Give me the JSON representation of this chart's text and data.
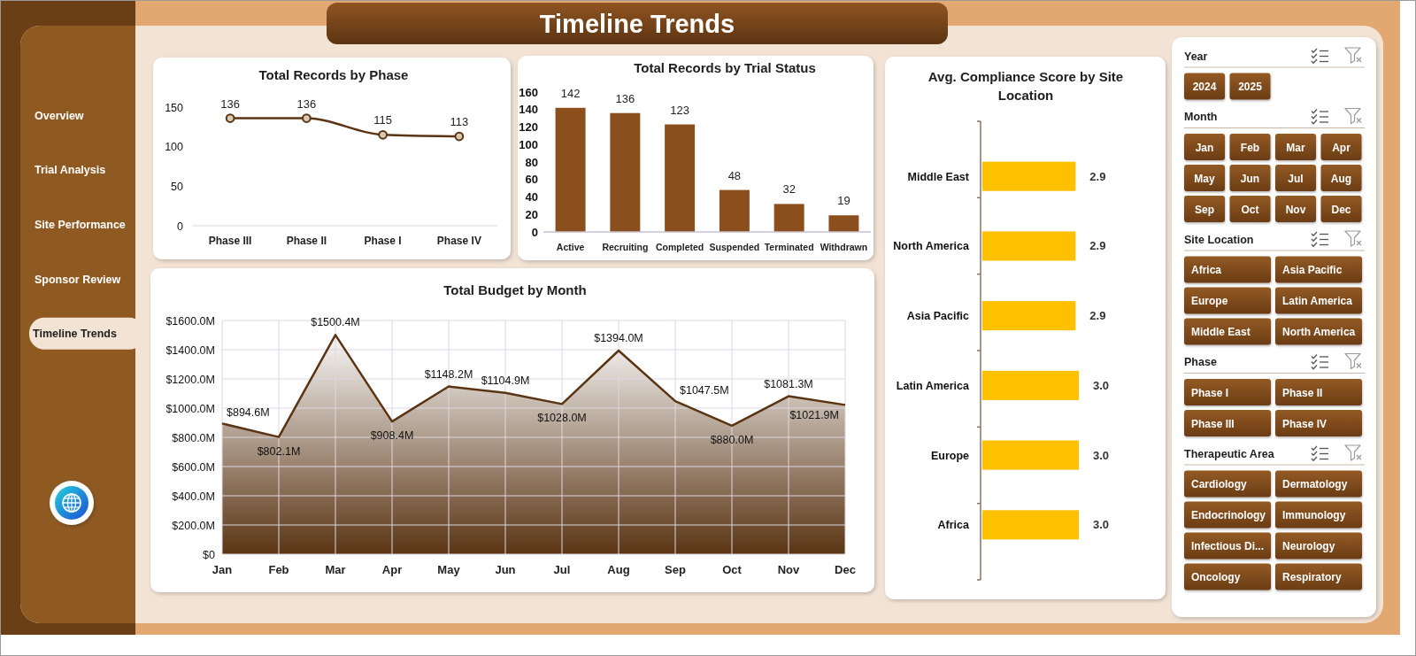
{
  "chart_data": [
    {
      "type": "other",
      "title": "Timeline Trends"
    },
    {
      "type": "other",
      "categories": [
        "Overview",
        "Trial Analysis",
        "Site Performance",
        "Sponsor Review",
        "Timeline Trends"
      ]
    },
    {
      "type": "line",
      "title": "Total Records by Phase",
      "categories": [
        "Phase III",
        "Phase II",
        "Phase I",
        "Phase IV"
      ],
      "values": [
        136,
        136,
        115,
        113
      ],
      "color": "#5a3413",
      "ylim": [
        0,
        150
      ],
      "yticks": [
        0,
        50,
        100,
        150
      ],
      "marker": "circle",
      "data_labels": true
    },
    {
      "type": "bar",
      "title": "Total Records by Trial Status",
      "categories": [
        "Active",
        "Recruiting",
        "Completed",
        "Suspended",
        "Terminated",
        "Withdrawn"
      ],
      "values": [
        142,
        136,
        123,
        48,
        32,
        19
      ],
      "color": "#8b4f1d",
      "ylim": [
        0,
        160
      ],
      "yticks": [
        0,
        20,
        40,
        60,
        80,
        100,
        120,
        140,
        160
      ],
      "data_labels": true
    },
    {
      "type": "bar",
      "orientation": "horizontal",
      "title": "Avg. Compliance Score by Site Location",
      "categories": [
        "Middle East",
        "North America",
        "Asia Pacific",
        "Latin America",
        "Europe",
        "Africa"
      ],
      "values": [
        2.9,
        2.9,
        2.9,
        3.0,
        3.0,
        3.0
      ],
      "value_labels": [
        "2.9",
        "2.9",
        "2.9",
        "3.0",
        "3.0",
        "3.0"
      ],
      "color": "#ffc000",
      "tick_labels": "y"
    },
    {
      "type": "area",
      "title": "Total Budget by Month",
      "categories": [
        "Jan",
        "Feb",
        "Mar",
        "Apr",
        "May",
        "Jun",
        "Jul",
        "Aug",
        "Sep",
        "Oct",
        "Nov",
        "Dec"
      ],
      "values": [
        894.6,
        802.1,
        1500.4,
        908.4,
        1148.2,
        1104.9,
        1028.0,
        1394.0,
        1047.5,
        880.0,
        1081.3,
        1021.9
      ],
      "value_labels": [
        "$894.6M",
        "$802.1M",
        "$1500.4M",
        "$908.4M",
        "$1148.2M",
        "$1104.9M",
        "$1028.0M",
        "$1394.0M",
        "$1047.5M",
        "$880.0M",
        "$1081.3M",
        "$1021.9M"
      ],
      "color": "#5a3413",
      "ylim": [
        0,
        1600
      ],
      "yticks": [
        {
          "value": 0,
          "label": "$0"
        },
        {
          "value": 200,
          "label": "$200.0M"
        },
        {
          "value": 400,
          "label": "$400.0M"
        },
        {
          "value": 600,
          "label": "$600.0M"
        },
        {
          "value": 800,
          "label": "$800.0M"
        },
        {
          "value": 1000,
          "label": "$1000.0M"
        },
        {
          "value": 1200,
          "label": "$1200.0M"
        },
        {
          "value": 1400,
          "label": "$1400.0M"
        },
        {
          "value": 1600,
          "label": "$1600.0M"
        }
      ],
      "grid": true
    },
    {
      "type": "other",
      "title": "Year",
      "categories": [
        "2024",
        "2025"
      ]
    },
    {
      "type": "other",
      "title": "Month",
      "categories": [
        "Jan",
        "Feb",
        "Mar",
        "Apr",
        "May",
        "Jun",
        "Jul",
        "Aug",
        "Sep",
        "Oct",
        "Nov",
        "Dec"
      ]
    },
    {
      "type": "other",
      "title": "Site Location",
      "categories": [
        "Africa",
        "Asia Pacific",
        "Europe",
        "Latin America",
        "Middle East",
        "North America"
      ]
    },
    {
      "type": "other",
      "title": "Phase",
      "categories": [
        "Phase I",
        "Phase II",
        "Phase III",
        "Phase IV"
      ]
    },
    {
      "type": "other",
      "title": "Therapeutic Area",
      "categories": [
        "Cardiology",
        "Dermatology",
        "Endocrinology",
        "Immunology",
        "Infectious Di...",
        "Neurology",
        "Oncology",
        "Respiratory"
      ]
    }
  ]
}
